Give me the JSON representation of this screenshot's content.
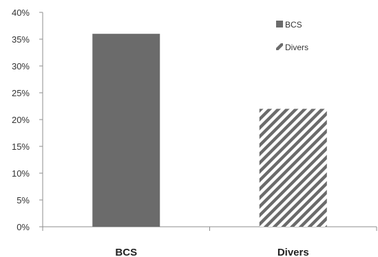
{
  "chart_data": {
    "type": "bar",
    "categories": [
      "BCS",
      "Divers"
    ],
    "values": [
      36,
      22
    ],
    "bar_styles": [
      "solid",
      "hatched"
    ],
    "bar_color": "#6b6b6b",
    "ylim": [
      0,
      40
    ],
    "ytick_step": 5,
    "ytick_labels": [
      "0%",
      "5%",
      "10%",
      "15%",
      "20%",
      "25%",
      "30%",
      "35%",
      "40%"
    ],
    "grid": false,
    "legend_position": "top-right",
    "legend": [
      {
        "label": "BCS",
        "style": "solid"
      },
      {
        "label": "Divers",
        "style": "hatched"
      }
    ]
  }
}
